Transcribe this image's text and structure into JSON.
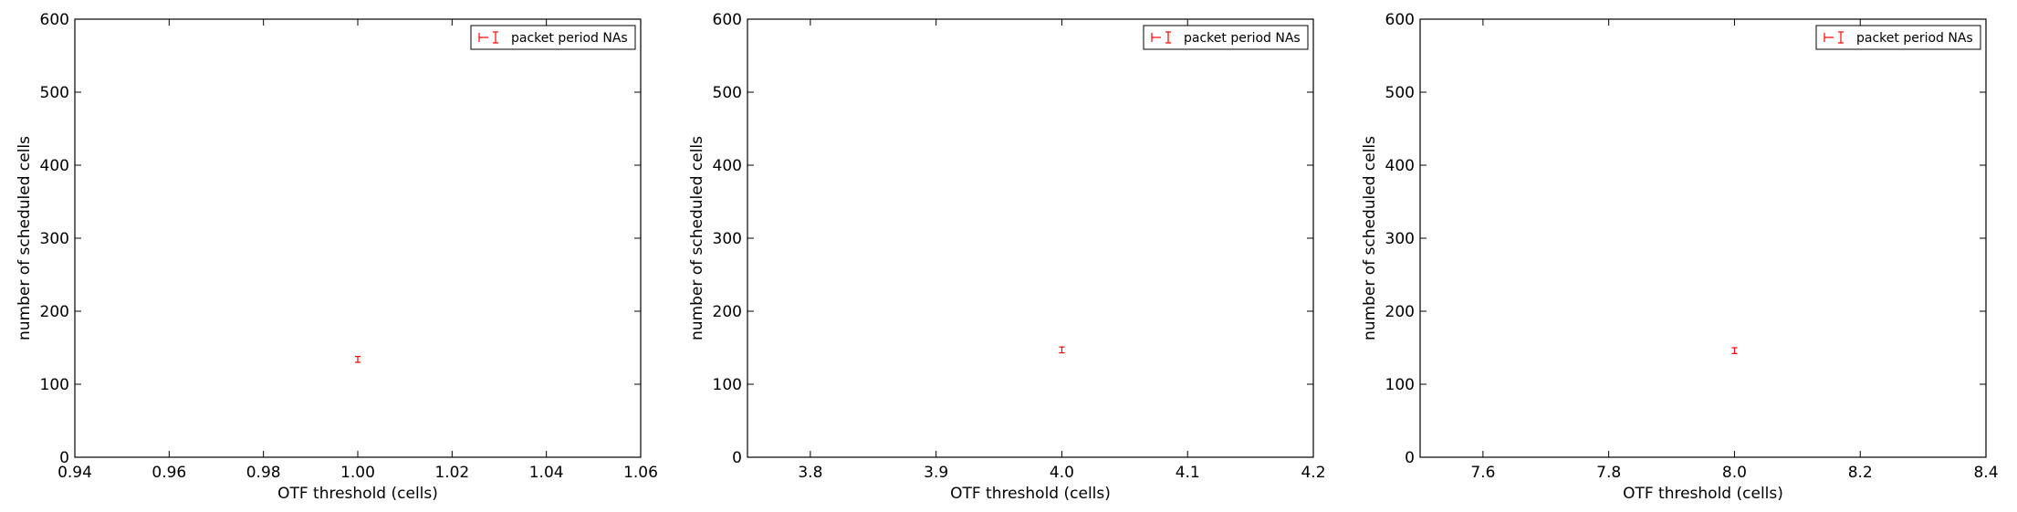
{
  "chart_data": [
    {
      "type": "scatter",
      "xlabel": "OTF threshold (cells)",
      "ylabel": "number of scheduled cells",
      "xlim": [
        0.94,
        1.06
      ],
      "ylim": [
        0,
        600
      ],
      "xticks": [
        0.94,
        0.96,
        0.98,
        1.0,
        1.02,
        1.04,
        1.06
      ],
      "xtick_labels": [
        "0.94",
        "0.96",
        "0.98",
        "1.00",
        "1.02",
        "1.04",
        "1.06"
      ],
      "yticks": [
        0,
        100,
        200,
        300,
        400,
        500,
        600
      ],
      "ytick_labels": [
        "0",
        "100",
        "200",
        "300",
        "400",
        "500",
        "600"
      ],
      "legend_position": "top-right",
      "series": [
        {
          "name": "packet period NAs",
          "color": "#ff0000",
          "points": [
            {
              "x": 1.0,
              "y": 134,
              "yerr": 4
            }
          ]
        }
      ]
    },
    {
      "type": "scatter",
      "xlabel": "OTF threshold (cells)",
      "ylabel": "number of scheduled cells",
      "xlim": [
        3.75,
        4.2
      ],
      "ylim": [
        0,
        600
      ],
      "xticks": [
        3.8,
        3.9,
        4.0,
        4.1,
        4.2
      ],
      "xtick_labels": [
        "3.8",
        "3.9",
        "4.0",
        "4.1",
        "4.2"
      ],
      "yticks": [
        0,
        100,
        200,
        300,
        400,
        500,
        600
      ],
      "ytick_labels": [
        "0",
        "100",
        "200",
        "300",
        "400",
        "500",
        "600"
      ],
      "legend_position": "top-right",
      "series": [
        {
          "name": "packet period NAs",
          "color": "#ff0000",
          "points": [
            {
              "x": 4.0,
              "y": 147,
              "yerr": 4
            }
          ]
        }
      ]
    },
    {
      "type": "scatter",
      "xlabel": "OTF threshold (cells)",
      "ylabel": "number of scheduled cells",
      "xlim": [
        7.5,
        8.4
      ],
      "ylim": [
        0,
        600
      ],
      "xticks": [
        7.6,
        7.8,
        8.0,
        8.2,
        8.4
      ],
      "xtick_labels": [
        "7.6",
        "7.8",
        "8.0",
        "8.2",
        "8.4"
      ],
      "yticks": [
        0,
        100,
        200,
        300,
        400,
        500,
        600
      ],
      "ytick_labels": [
        "0",
        "100",
        "200",
        "300",
        "400",
        "500",
        "600"
      ],
      "legend_position": "top-right",
      "series": [
        {
          "name": "packet period NAs",
          "color": "#ff0000",
          "points": [
            {
              "x": 8.0,
              "y": 146,
              "yerr": 4
            }
          ]
        }
      ]
    }
  ]
}
